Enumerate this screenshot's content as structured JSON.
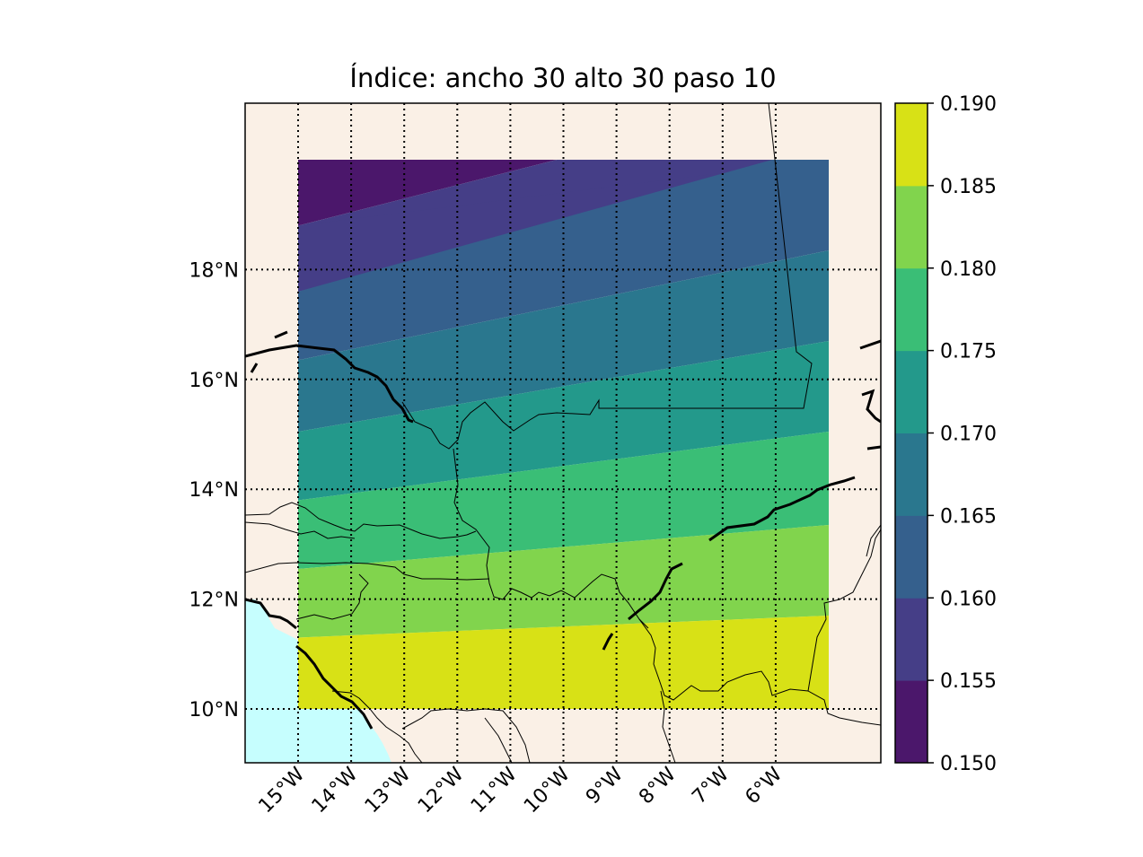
{
  "title": "Índice: ancho 30 alto 30 paso 10",
  "colors": {
    "land": "#faf0e6",
    "ocean": "#c6fefe",
    "levels": [
      "#440154",
      "#482878",
      "#3e4989",
      "#31688e",
      "#26828e",
      "#1f9e89",
      "#35b779",
      "#6ece58",
      "#b5de2b",
      "#fde725"
    ],
    "contour_fill": [
      "#4b176b",
      "#453e87",
      "#35608d",
      "#2a778e",
      "#23998b",
      "#3abe76",
      "#81d44d",
      "#d8e116"
    ]
  },
  "map": {
    "lon_range": [
      -16.0,
      -4.0
    ],
    "lat_range": [
      9.0,
      21.0
    ],
    "data_extent": {
      "lon": [
        -15.0,
        -5.0
      ],
      "lat": [
        10.0,
        20.0
      ]
    },
    "meridian_labels": [
      "15°W",
      "14°W",
      "13°W",
      "12°W",
      "11°W",
      "10°W",
      "9°W",
      "8°W",
      "7°W",
      "6°W"
    ],
    "parallel_labels": [
      "10°N",
      "12°N",
      "14°N",
      "16°N",
      "18°N"
    ],
    "grid": "dotted"
  },
  "colorbar": {
    "ticks": [
      "0.150",
      "0.155",
      "0.160",
      "0.165",
      "0.170",
      "0.175",
      "0.180",
      "0.185",
      "0.190"
    ],
    "values": [
      0.15,
      0.155,
      0.16,
      0.165,
      0.17,
      0.175,
      0.18,
      0.185,
      0.19
    ]
  },
  "chart_data": {
    "type": "heatmap",
    "title": "Índice: ancho 30 alto 30 paso 10",
    "levels": [
      0.15,
      0.155,
      0.16,
      0.165,
      0.17,
      0.175,
      0.18,
      0.185,
      0.19
    ],
    "field": {
      "description_points": [
        {
          "lon": -15,
          "lat": 20,
          "value": 0.153
        },
        {
          "lon": -5,
          "lat": 20,
          "value": 0.163
        },
        {
          "lon": -15,
          "lat": 10,
          "value": 0.187
        },
        {
          "lon": -5,
          "lat": 10,
          "value": 0.187
        }
      ],
      "bands": [
        {
          "range": [
            0.15,
            0.155
          ],
          "west_lat": [
            18.8,
            20.0
          ],
          "east_lat": [
            20.0,
            20.0
          ]
        },
        {
          "range": [
            0.155,
            0.16
          ],
          "west_lat": [
            17.6,
            18.8
          ],
          "east_lat": [
            20.0,
            20.0
          ]
        },
        {
          "range": [
            0.16,
            0.165
          ],
          "west_lat": [
            16.35,
            17.6
          ],
          "east_lat": [
            18.35,
            20.0
          ]
        },
        {
          "range": [
            0.165,
            0.17
          ],
          "west_lat": [
            15.05,
            16.35
          ],
          "east_lat": [
            16.7,
            18.35
          ]
        },
        {
          "range": [
            0.17,
            0.175
          ],
          "west_lat": [
            13.8,
            15.05
          ],
          "east_lat": [
            15.05,
            16.7
          ]
        },
        {
          "range": [
            0.175,
            0.18
          ],
          "west_lat": [
            12.55,
            13.8
          ],
          "east_lat": [
            13.35,
            15.05
          ]
        },
        {
          "range": [
            0.18,
            0.185
          ],
          "west_lat": [
            11.3,
            12.55
          ],
          "east_lat": [
            11.7,
            13.35
          ]
        },
        {
          "range": [
            0.185,
            0.19
          ],
          "west_lat": [
            10.0,
            11.3
          ],
          "east_lat": [
            10.0,
            11.7
          ]
        }
      ]
    }
  }
}
